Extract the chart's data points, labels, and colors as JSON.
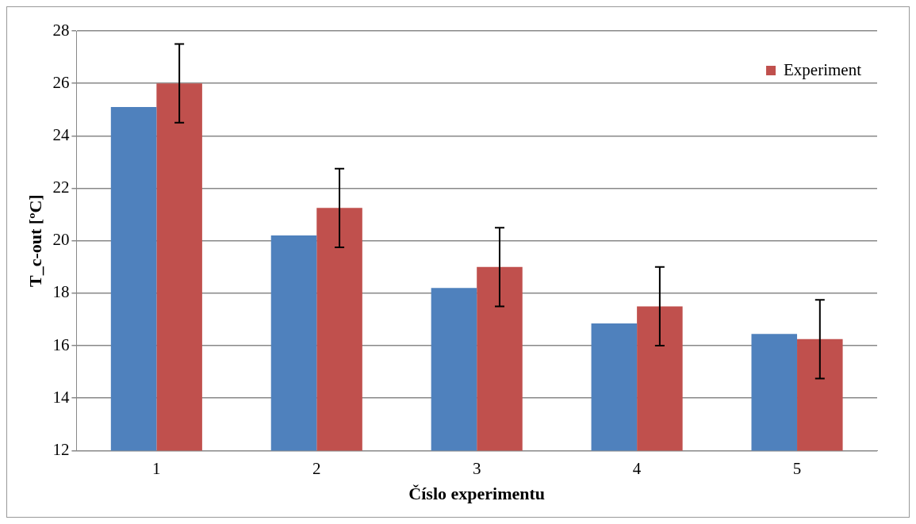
{
  "chart_data": {
    "type": "bar",
    "xlabel": "Číslo experimentu",
    "ylabel": "T_c-out [ºC]",
    "categories": [
      "1",
      "2",
      "3",
      "4",
      "5"
    ],
    "series": [
      {
        "color": "#4f81bd",
        "values": [
          25.1,
          20.2,
          18.2,
          16.85,
          16.45
        ]
      },
      {
        "name": "Experiment",
        "color": "#c0504d",
        "values": [
          26.0,
          21.25,
          19.0,
          17.5,
          16.25
        ],
        "errors": [
          1.5,
          1.5,
          1.5,
          1.5,
          1.5
        ]
      }
    ],
    "ylim": [
      12,
      28
    ],
    "yticks": [
      12,
      14,
      16,
      18,
      20,
      22,
      24,
      26,
      28
    ],
    "grid": "y",
    "legend": "top right"
  }
}
